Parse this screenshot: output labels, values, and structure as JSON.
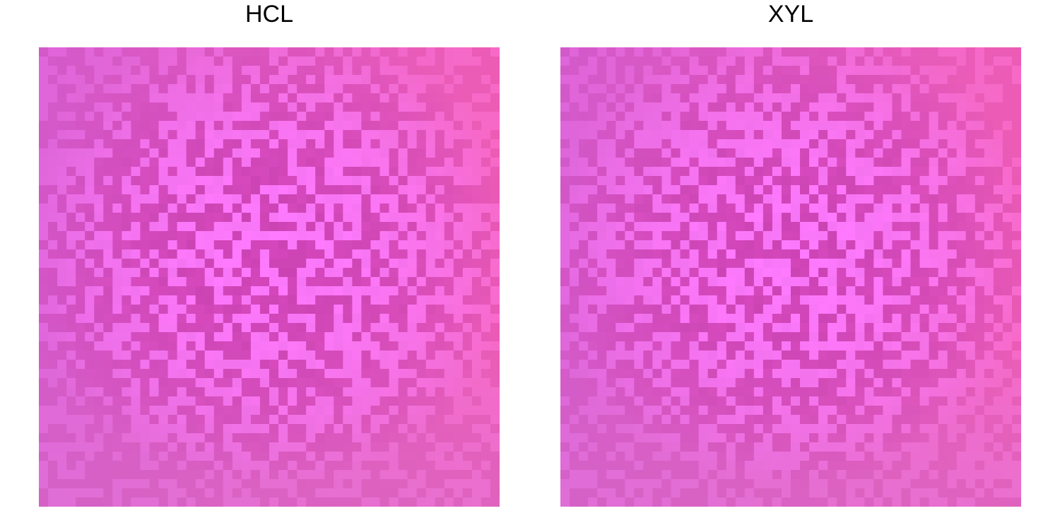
{
  "chart_data": [
    {
      "type": "heatmap",
      "title": "HCL",
      "grid": {
        "rows": 50,
        "cols": 50
      },
      "xlabel": "",
      "ylabel": "",
      "legend": "none",
      "description_colors": {
        "light": "#fb78fb",
        "dark": "#d045b8",
        "edge_left": "#d45fcf",
        "edge_right": "#f664b4",
        "edge_bottom": "#d873c8"
      },
      "seed": 1337
    },
    {
      "type": "heatmap",
      "title": "XYL",
      "grid": {
        "rows": 50,
        "cols": 50
      },
      "xlabel": "",
      "ylabel": "",
      "legend": "none",
      "description_colors": {
        "light": "#fb78fb",
        "dark": "#d045b8",
        "edge_left": "#d45fcf",
        "edge_right": "#f664b4",
        "edge_bottom": "#d873c8"
      },
      "seed": 4242
    }
  ]
}
